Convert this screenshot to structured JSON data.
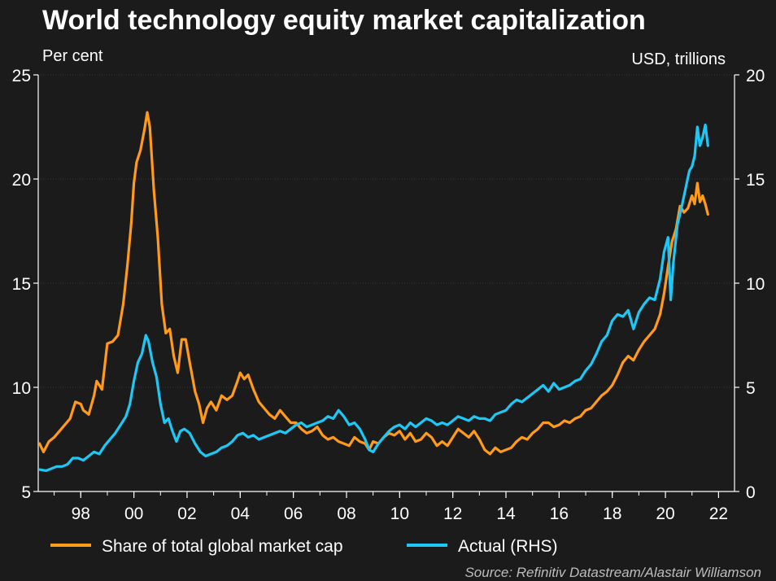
{
  "chart_data": {
    "type": "line",
    "title": "World technology equity market capitalization",
    "left_axis_label": "Per cent",
    "right_axis_label": "USD, trillions",
    "left_ylim": [
      5,
      25
    ],
    "left_yticks": [
      5,
      10,
      15,
      20,
      25
    ],
    "right_ylim": [
      0,
      20
    ],
    "right_yticks": [
      0,
      5,
      10,
      15,
      20
    ],
    "xlim": [
      1996.4,
      2022.6
    ],
    "xticks": [
      {
        "x": 1998,
        "label": "98"
      },
      {
        "x": 2000,
        "label": "00"
      },
      {
        "x": 2002,
        "label": "02"
      },
      {
        "x": 2004,
        "label": "04"
      },
      {
        "x": 2006,
        "label": "06"
      },
      {
        "x": 2008,
        "label": "08"
      },
      {
        "x": 2010,
        "label": "10"
      },
      {
        "x": 2012,
        "label": "12"
      },
      {
        "x": 2014,
        "label": "14"
      },
      {
        "x": 2016,
        "label": "16"
      },
      {
        "x": 2018,
        "label": "18"
      },
      {
        "x": 2020,
        "label": "20"
      },
      {
        "x": 2022,
        "label": "22"
      }
    ],
    "series": [
      {
        "name": "Share of total global market cap",
        "axis": "left",
        "color": "#ff9a1a",
        "points": [
          [
            1996.45,
            7.3
          ],
          [
            1996.6,
            6.9
          ],
          [
            1996.8,
            7.4
          ],
          [
            1997.0,
            7.6
          ],
          [
            1997.2,
            7.9
          ],
          [
            1997.4,
            8.2
          ],
          [
            1997.6,
            8.5
          ],
          [
            1997.8,
            9.3
          ],
          [
            1998.0,
            9.2
          ],
          [
            1998.1,
            8.9
          ],
          [
            1998.3,
            8.7
          ],
          [
            1998.5,
            9.6
          ],
          [
            1998.6,
            10.3
          ],
          [
            1998.8,
            9.9
          ],
          [
            1999.0,
            12.1
          ],
          [
            1999.2,
            12.2
          ],
          [
            1999.4,
            12.5
          ],
          [
            1999.6,
            14.0
          ],
          [
            1999.75,
            15.8
          ],
          [
            1999.9,
            17.9
          ],
          [
            2000.0,
            19.8
          ],
          [
            2000.1,
            20.8
          ],
          [
            2000.25,
            21.4
          ],
          [
            2000.4,
            22.4
          ],
          [
            2000.5,
            23.2
          ],
          [
            2000.6,
            22.5
          ],
          [
            2000.75,
            19.5
          ],
          [
            2000.9,
            17.2
          ],
          [
            2001.05,
            14.0
          ],
          [
            2001.2,
            12.6
          ],
          [
            2001.35,
            12.8
          ],
          [
            2001.5,
            11.5
          ],
          [
            2001.65,
            10.7
          ],
          [
            2001.8,
            12.3
          ],
          [
            2001.95,
            12.3
          ],
          [
            2002.1,
            11.2
          ],
          [
            2002.3,
            9.8
          ],
          [
            2002.45,
            9.2
          ],
          [
            2002.6,
            8.3
          ],
          [
            2002.75,
            9.0
          ],
          [
            2002.9,
            9.3
          ],
          [
            2003.1,
            8.9
          ],
          [
            2003.3,
            9.6
          ],
          [
            2003.5,
            9.4
          ],
          [
            2003.7,
            9.6
          ],
          [
            2003.9,
            10.3
          ],
          [
            2004.0,
            10.7
          ],
          [
            2004.15,
            10.4
          ],
          [
            2004.3,
            10.6
          ],
          [
            2004.5,
            9.9
          ],
          [
            2004.7,
            9.3
          ],
          [
            2004.9,
            9.0
          ],
          [
            2005.1,
            8.7
          ],
          [
            2005.3,
            8.5
          ],
          [
            2005.5,
            8.9
          ],
          [
            2005.7,
            8.6
          ],
          [
            2005.9,
            8.3
          ],
          [
            2006.1,
            8.3
          ],
          [
            2006.3,
            8.0
          ],
          [
            2006.5,
            7.8
          ],
          [
            2006.7,
            7.9
          ],
          [
            2006.9,
            8.1
          ],
          [
            2007.1,
            7.7
          ],
          [
            2007.3,
            7.5
          ],
          [
            2007.5,
            7.6
          ],
          [
            2007.7,
            7.4
          ],
          [
            2007.9,
            7.3
          ],
          [
            2008.1,
            7.2
          ],
          [
            2008.3,
            7.6
          ],
          [
            2008.5,
            7.4
          ],
          [
            2008.7,
            7.3
          ],
          [
            2008.85,
            7.0
          ],
          [
            2009.0,
            7.4
          ],
          [
            2009.2,
            7.3
          ],
          [
            2009.4,
            7.6
          ],
          [
            2009.6,
            7.8
          ],
          [
            2009.8,
            7.7
          ],
          [
            2010.0,
            7.9
          ],
          [
            2010.2,
            7.5
          ],
          [
            2010.4,
            7.8
          ],
          [
            2010.6,
            7.4
          ],
          [
            2010.8,
            7.5
          ],
          [
            2011.0,
            7.8
          ],
          [
            2011.2,
            7.6
          ],
          [
            2011.4,
            7.2
          ],
          [
            2011.6,
            7.4
          ],
          [
            2011.8,
            7.2
          ],
          [
            2012.0,
            7.6
          ],
          [
            2012.2,
            8.0
          ],
          [
            2012.4,
            7.8
          ],
          [
            2012.6,
            7.6
          ],
          [
            2012.8,
            7.9
          ],
          [
            2013.0,
            7.5
          ],
          [
            2013.2,
            7.0
          ],
          [
            2013.4,
            6.8
          ],
          [
            2013.6,
            7.1
          ],
          [
            2013.8,
            6.9
          ],
          [
            2014.0,
            7.0
          ],
          [
            2014.2,
            7.1
          ],
          [
            2014.4,
            7.4
          ],
          [
            2014.6,
            7.6
          ],
          [
            2014.8,
            7.5
          ],
          [
            2015.0,
            7.8
          ],
          [
            2015.2,
            8.0
          ],
          [
            2015.4,
            8.3
          ],
          [
            2015.6,
            8.3
          ],
          [
            2015.8,
            8.1
          ],
          [
            2016.0,
            8.2
          ],
          [
            2016.2,
            8.4
          ],
          [
            2016.4,
            8.3
          ],
          [
            2016.6,
            8.5
          ],
          [
            2016.8,
            8.6
          ],
          [
            2017.0,
            8.9
          ],
          [
            2017.2,
            9.0
          ],
          [
            2017.4,
            9.3
          ],
          [
            2017.6,
            9.6
          ],
          [
            2017.8,
            9.8
          ],
          [
            2018.0,
            10.1
          ],
          [
            2018.2,
            10.6
          ],
          [
            2018.4,
            11.2
          ],
          [
            2018.6,
            11.5
          ],
          [
            2018.8,
            11.3
          ],
          [
            2019.0,
            11.8
          ],
          [
            2019.2,
            12.2
          ],
          [
            2019.4,
            12.5
          ],
          [
            2019.6,
            12.8
          ],
          [
            2019.8,
            13.5
          ],
          [
            2019.95,
            14.5
          ],
          [
            2020.1,
            15.8
          ],
          [
            2020.25,
            17.0
          ],
          [
            2020.4,
            17.6
          ],
          [
            2020.55,
            18.7
          ],
          [
            2020.7,
            18.4
          ],
          [
            2020.85,
            18.6
          ],
          [
            2021.0,
            19.2
          ],
          [
            2021.1,
            18.8
          ],
          [
            2021.2,
            19.8
          ],
          [
            2021.3,
            18.9
          ],
          [
            2021.4,
            19.2
          ],
          [
            2021.5,
            18.8
          ],
          [
            2021.6,
            18.3
          ]
        ]
      },
      {
        "name": "Actual (RHS)",
        "axis": "right",
        "color": "#1ec8f5",
        "points": [
          [
            1996.45,
            1.05
          ],
          [
            1996.7,
            1.0
          ],
          [
            1996.9,
            1.1
          ],
          [
            1997.1,
            1.2
          ],
          [
            1997.3,
            1.2
          ],
          [
            1997.5,
            1.3
          ],
          [
            1997.7,
            1.6
          ],
          [
            1997.9,
            1.6
          ],
          [
            1998.1,
            1.5
          ],
          [
            1998.3,
            1.7
          ],
          [
            1998.5,
            1.9
          ],
          [
            1998.7,
            1.8
          ],
          [
            1998.9,
            2.2
          ],
          [
            1999.1,
            2.5
          ],
          [
            1999.3,
            2.8
          ],
          [
            1999.5,
            3.2
          ],
          [
            1999.7,
            3.6
          ],
          [
            1999.85,
            4.2
          ],
          [
            2000.0,
            5.3
          ],
          [
            2000.15,
            6.2
          ],
          [
            2000.3,
            6.6
          ],
          [
            2000.45,
            7.5
          ],
          [
            2000.55,
            7.2
          ],
          [
            2000.7,
            6.2
          ],
          [
            2000.85,
            5.5
          ],
          [
            2001.0,
            4.2
          ],
          [
            2001.15,
            3.3
          ],
          [
            2001.3,
            3.5
          ],
          [
            2001.45,
            2.9
          ],
          [
            2001.6,
            2.4
          ],
          [
            2001.75,
            2.9
          ],
          [
            2001.9,
            3.0
          ],
          [
            2002.1,
            2.8
          ],
          [
            2002.3,
            2.3
          ],
          [
            2002.5,
            1.9
          ],
          [
            2002.7,
            1.7
          ],
          [
            2002.9,
            1.8
          ],
          [
            2003.1,
            1.9
          ],
          [
            2003.3,
            2.1
          ],
          [
            2003.5,
            2.2
          ],
          [
            2003.7,
            2.4
          ],
          [
            2003.9,
            2.7
          ],
          [
            2004.1,
            2.8
          ],
          [
            2004.3,
            2.6
          ],
          [
            2004.5,
            2.7
          ],
          [
            2004.7,
            2.5
          ],
          [
            2004.9,
            2.6
          ],
          [
            2005.1,
            2.7
          ],
          [
            2005.3,
            2.8
          ],
          [
            2005.5,
            2.9
          ],
          [
            2005.7,
            2.8
          ],
          [
            2005.9,
            3.0
          ],
          [
            2006.1,
            3.2
          ],
          [
            2006.3,
            3.3
          ],
          [
            2006.5,
            3.1
          ],
          [
            2006.7,
            3.2
          ],
          [
            2006.9,
            3.3
          ],
          [
            2007.1,
            3.4
          ],
          [
            2007.3,
            3.6
          ],
          [
            2007.5,
            3.5
          ],
          [
            2007.7,
            3.9
          ],
          [
            2007.9,
            3.6
          ],
          [
            2008.1,
            3.2
          ],
          [
            2008.3,
            3.3
          ],
          [
            2008.5,
            3.0
          ],
          [
            2008.7,
            2.5
          ],
          [
            2008.85,
            2.0
          ],
          [
            2009.0,
            1.9
          ],
          [
            2009.2,
            2.3
          ],
          [
            2009.4,
            2.6
          ],
          [
            2009.6,
            2.9
          ],
          [
            2009.8,
            3.1
          ],
          [
            2010.0,
            3.2
          ],
          [
            2010.2,
            3.0
          ],
          [
            2010.4,
            3.3
          ],
          [
            2010.6,
            3.1
          ],
          [
            2010.8,
            3.3
          ],
          [
            2011.0,
            3.5
          ],
          [
            2011.2,
            3.4
          ],
          [
            2011.4,
            3.2
          ],
          [
            2011.6,
            3.3
          ],
          [
            2011.8,
            3.2
          ],
          [
            2012.0,
            3.4
          ],
          [
            2012.2,
            3.6
          ],
          [
            2012.4,
            3.5
          ],
          [
            2012.6,
            3.4
          ],
          [
            2012.8,
            3.6
          ],
          [
            2013.0,
            3.5
          ],
          [
            2013.2,
            3.5
          ],
          [
            2013.4,
            3.4
          ],
          [
            2013.6,
            3.7
          ],
          [
            2013.8,
            3.8
          ],
          [
            2014.0,
            3.9
          ],
          [
            2014.2,
            4.2
          ],
          [
            2014.4,
            4.4
          ],
          [
            2014.6,
            4.3
          ],
          [
            2014.8,
            4.5
          ],
          [
            2015.0,
            4.7
          ],
          [
            2015.2,
            4.9
          ],
          [
            2015.4,
            5.1
          ],
          [
            2015.6,
            4.8
          ],
          [
            2015.8,
            5.2
          ],
          [
            2016.0,
            4.9
          ],
          [
            2016.2,
            5.0
          ],
          [
            2016.4,
            5.1
          ],
          [
            2016.6,
            5.3
          ],
          [
            2016.8,
            5.4
          ],
          [
            2017.0,
            5.8
          ],
          [
            2017.2,
            6.1
          ],
          [
            2017.4,
            6.6
          ],
          [
            2017.6,
            7.2
          ],
          [
            2017.8,
            7.5
          ],
          [
            2018.0,
            8.2
          ],
          [
            2018.2,
            8.5
          ],
          [
            2018.4,
            8.4
          ],
          [
            2018.6,
            8.7
          ],
          [
            2018.8,
            7.8
          ],
          [
            2019.0,
            8.6
          ],
          [
            2019.2,
            9.0
          ],
          [
            2019.4,
            9.3
          ],
          [
            2019.6,
            9.2
          ],
          [
            2019.8,
            10.2
          ],
          [
            2019.95,
            11.5
          ],
          [
            2020.1,
            12.2
          ],
          [
            2020.2,
            9.2
          ],
          [
            2020.3,
            11.0
          ],
          [
            2020.45,
            12.8
          ],
          [
            2020.6,
            13.6
          ],
          [
            2020.75,
            14.5
          ],
          [
            2020.9,
            15.4
          ],
          [
            2021.0,
            15.6
          ],
          [
            2021.1,
            16.1
          ],
          [
            2021.2,
            17.5
          ],
          [
            2021.3,
            16.6
          ],
          [
            2021.4,
            17.0
          ],
          [
            2021.5,
            17.6
          ],
          [
            2021.6,
            16.6
          ]
        ]
      }
    ],
    "legend_position": "bottom",
    "source": "Source: Refinitiv Datastream/Alastair Williamson"
  }
}
